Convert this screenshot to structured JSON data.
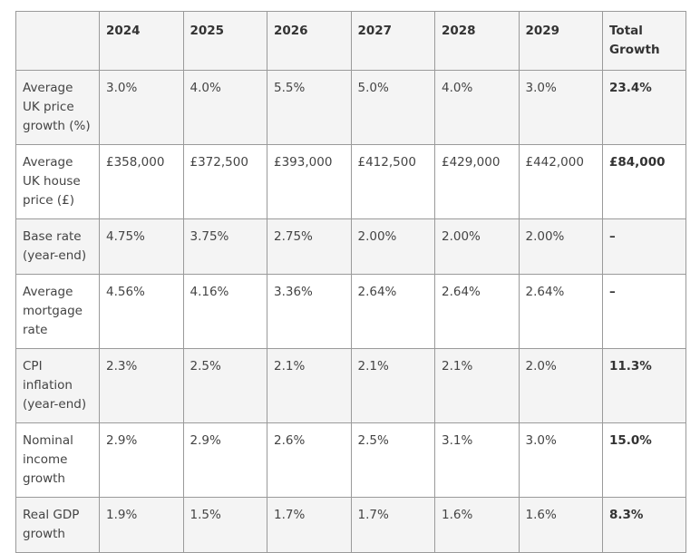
{
  "table": {
    "headers": [
      "",
      "2024",
      "2025",
      "2026",
      "2027",
      "2028",
      "2029",
      "Total Growth"
    ],
    "rows": [
      {
        "label": "Average UK price growth (%)",
        "values": [
          "3.0%",
          "4.0%",
          "5.5%",
          "5.0%",
          "4.0%",
          "3.0%"
        ],
        "total": "23.4%"
      },
      {
        "label": "Average UK house price (£)",
        "values": [
          "£358,000",
          "£372,500",
          "£393,000",
          "£412,500",
          "£429,000",
          "£442,000"
        ],
        "total": "£84,000"
      },
      {
        "label": "Base rate (year-end)",
        "values": [
          "4.75%",
          "3.75%",
          "2.75%",
          "2.00%",
          "2.00%",
          "2.00%"
        ],
        "total": "–"
      },
      {
        "label": "Average mortgage rate",
        "values": [
          "4.56%",
          "4.16%",
          "3.36%",
          "2.64%",
          "2.64%",
          "2.64%"
        ],
        "total": "–"
      },
      {
        "label": "CPI inflation (year-end)",
        "values": [
          "2.3%",
          "2.5%",
          "2.1%",
          "2.1%",
          "2.1%",
          "2.0%"
        ],
        "total": "11.3%"
      },
      {
        "label": "Nominal income growth",
        "values": [
          "2.9%",
          "2.9%",
          "2.6%",
          "2.5%",
          "3.1%",
          "3.0%"
        ],
        "total": "15.0%"
      },
      {
        "label": "Real GDP growth",
        "values": [
          "1.9%",
          "1.5%",
          "1.7%",
          "1.7%",
          "1.6%",
          "1.6%"
        ],
        "total": "8.3%"
      }
    ]
  }
}
